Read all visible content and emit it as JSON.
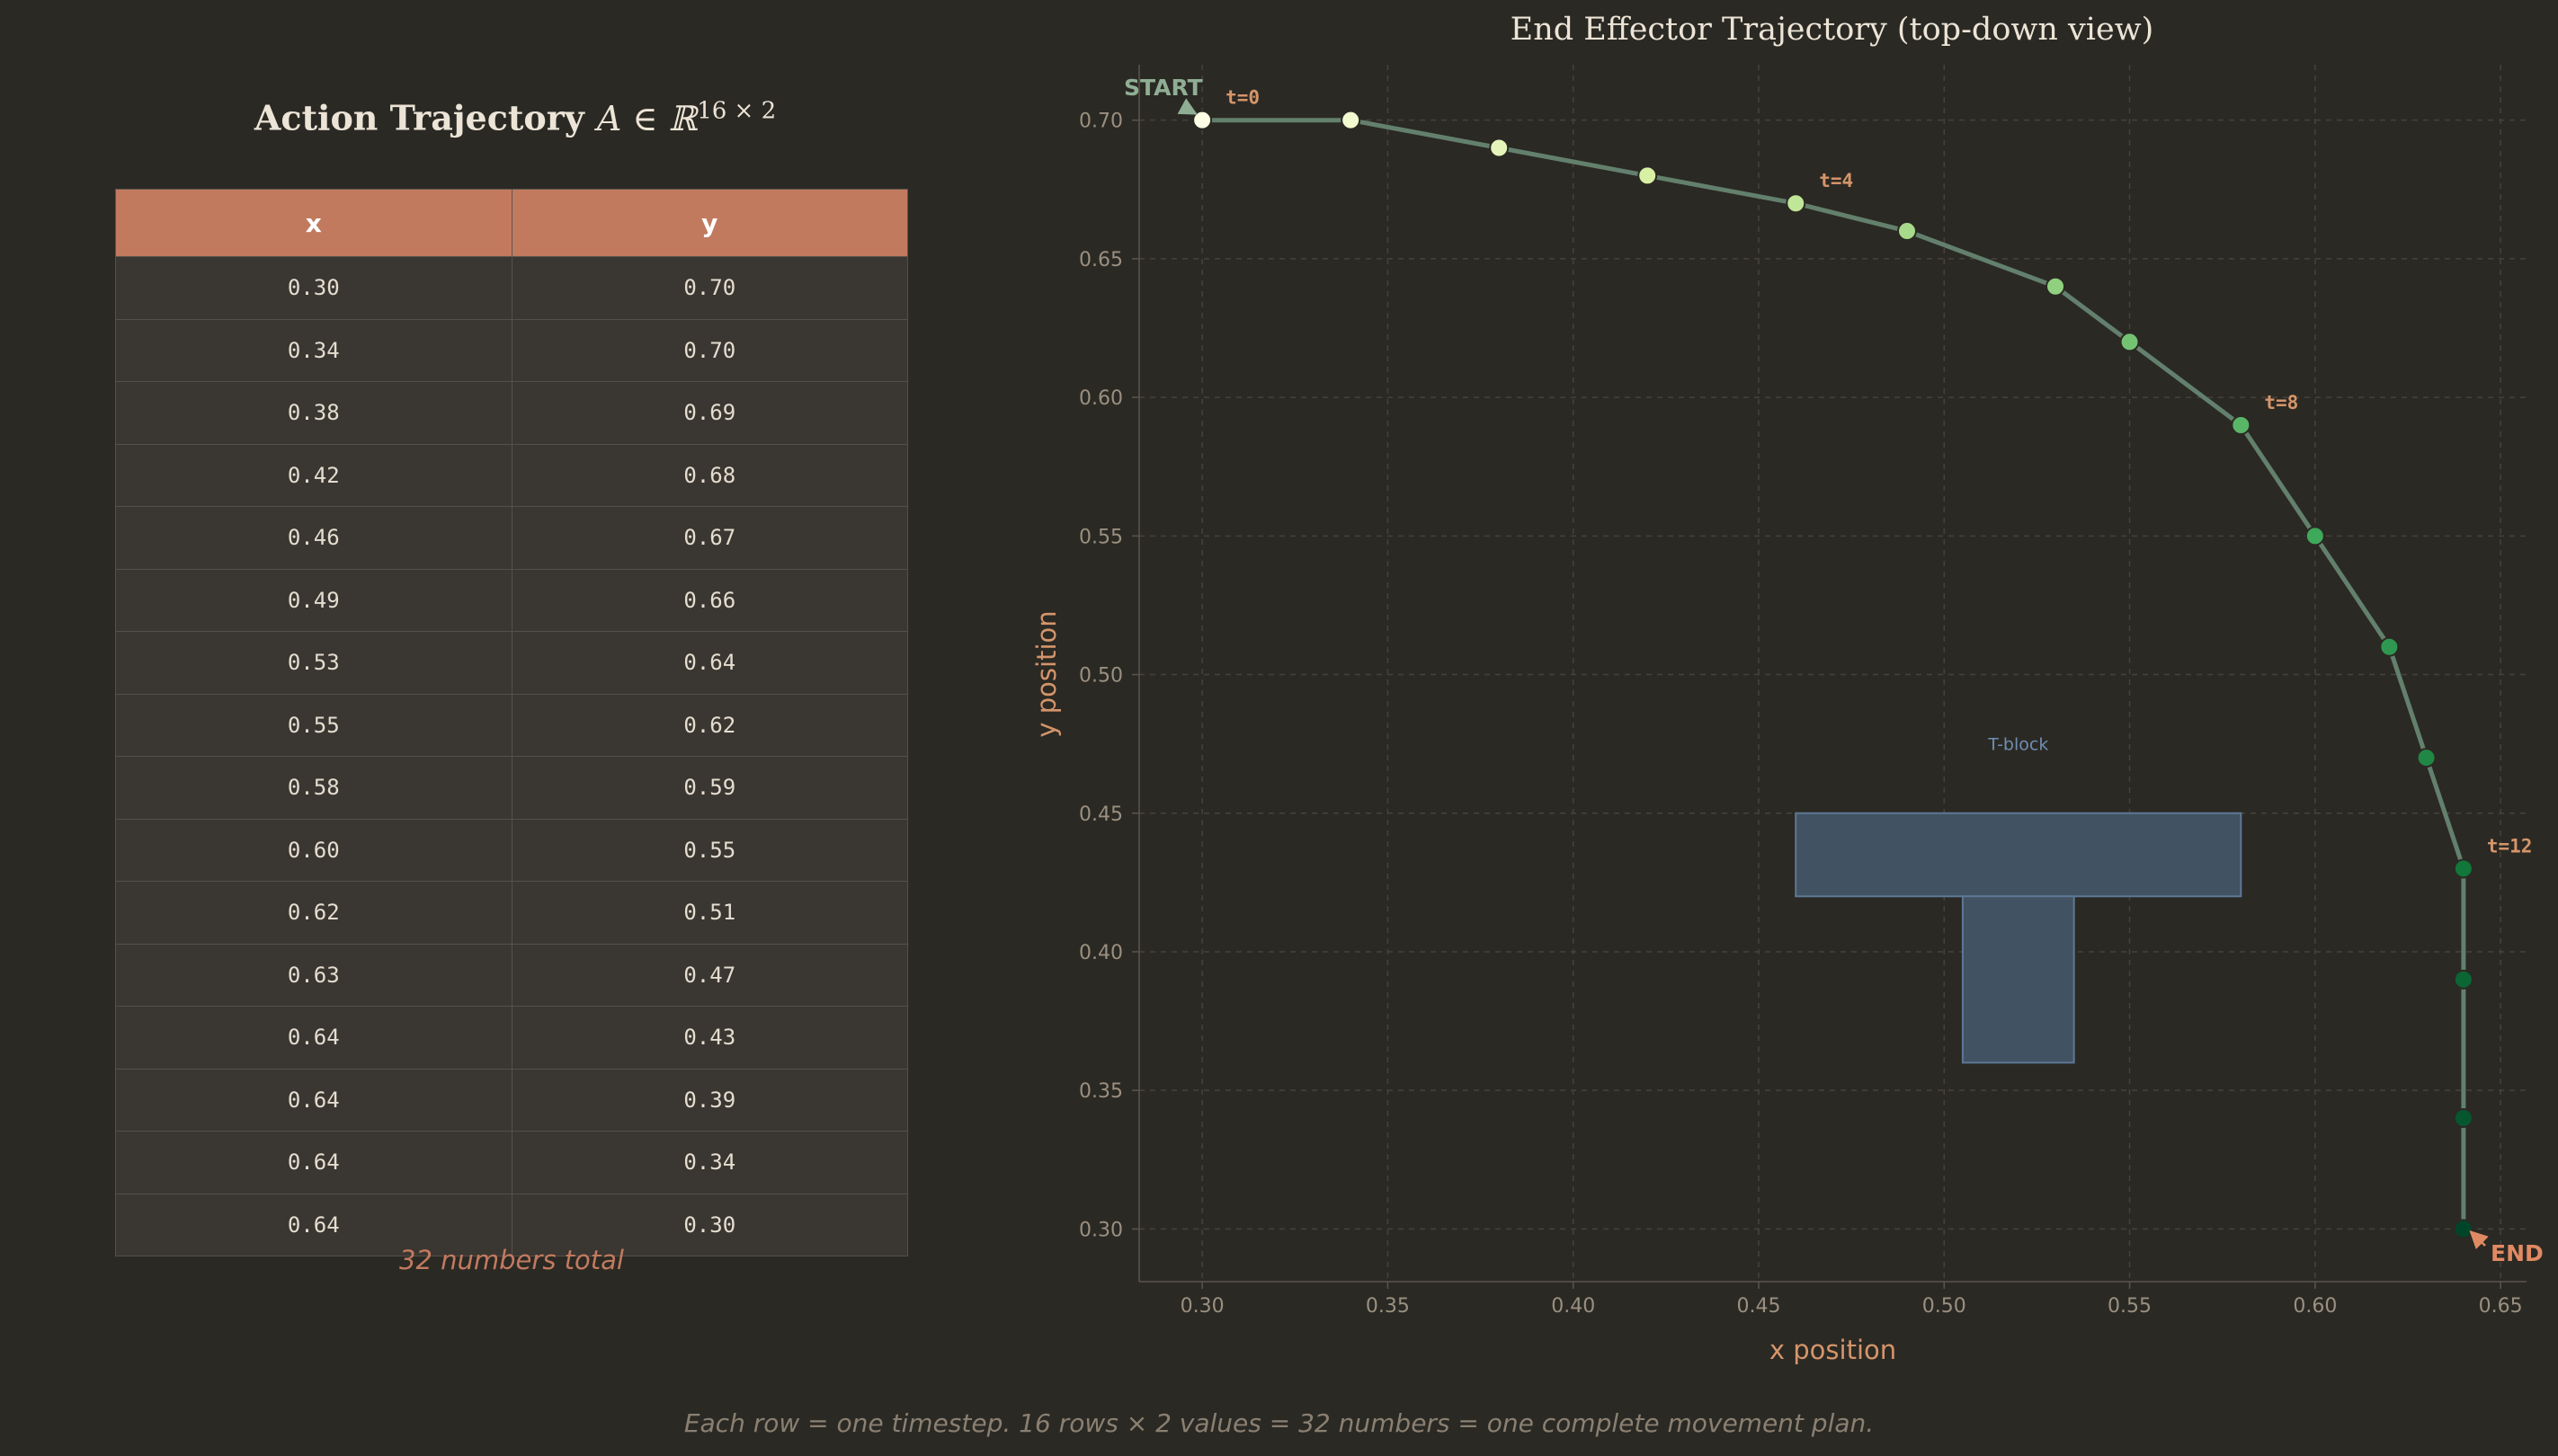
{
  "table_title": {
    "text": "Action Trajectory",
    "math": "A ∈ ℝ",
    "exp": "16 × 2"
  },
  "table": {
    "headers": [
      "x",
      "y"
    ],
    "rows": [
      [
        "0.30",
        "0.70"
      ],
      [
        "0.34",
        "0.70"
      ],
      [
        "0.38",
        "0.69"
      ],
      [
        "0.42",
        "0.68"
      ],
      [
        "0.46",
        "0.67"
      ],
      [
        "0.49",
        "0.66"
      ],
      [
        "0.53",
        "0.64"
      ],
      [
        "0.55",
        "0.62"
      ],
      [
        "0.58",
        "0.59"
      ],
      [
        "0.60",
        "0.55"
      ],
      [
        "0.62",
        "0.51"
      ],
      [
        "0.63",
        "0.47"
      ],
      [
        "0.64",
        "0.43"
      ],
      [
        "0.64",
        "0.39"
      ],
      [
        "0.64",
        "0.34"
      ],
      [
        "0.64",
        "0.30"
      ]
    ]
  },
  "total_note": "32 numbers total",
  "footer_caption": "Each row = one timestep.  16 rows × 2 values = 32 numbers = one complete movement plan.",
  "chart_data": {
    "type": "line",
    "title": "End Effector Trajectory (top-down view)",
    "xlabel": "x position",
    "ylabel": "y position",
    "xlim": [
      0.283,
      0.657
    ],
    "ylim": [
      0.281,
      0.72
    ],
    "xticks": [
      0.3,
      0.35,
      0.4,
      0.45,
      0.5,
      0.55,
      0.6,
      0.65
    ],
    "yticks": [
      0.3,
      0.35,
      0.4,
      0.45,
      0.5,
      0.55,
      0.6,
      0.65,
      0.7
    ],
    "grid": true,
    "series": [
      {
        "name": "trajectory",
        "x": [
          0.3,
          0.34,
          0.38,
          0.42,
          0.46,
          0.49,
          0.53,
          0.55,
          0.58,
          0.6,
          0.62,
          0.63,
          0.64,
          0.64,
          0.64,
          0.64
        ],
        "y": [
          0.7,
          0.7,
          0.69,
          0.68,
          0.67,
          0.66,
          0.64,
          0.62,
          0.59,
          0.55,
          0.51,
          0.47,
          0.43,
          0.39,
          0.34,
          0.3
        ]
      }
    ],
    "point_labels": [
      {
        "index": 0,
        "text": "t=0"
      },
      {
        "index": 4,
        "text": "t=4"
      },
      {
        "index": 8,
        "text": "t=8"
      },
      {
        "index": 12,
        "text": "t=12"
      }
    ],
    "annotations": {
      "start": "START",
      "end": "END"
    },
    "obstacle": {
      "label": "T-block",
      "top_bar": {
        "x": [
          0.46,
          0.58
        ],
        "y": [
          0.42,
          0.45
        ]
      },
      "stem": {
        "x": [
          0.505,
          0.535
        ],
        "y": [
          0.36,
          0.42
        ]
      }
    },
    "colors": {
      "line": "#63806d",
      "axis_label": "#d4956a",
      "tick": "#9a9080",
      "title": "#ece4d6",
      "point_label": "#d4956a",
      "start": "#8fae94",
      "end": "#e08a63",
      "block_fill": "#415262",
      "block_edge": "#5d7896",
      "block_label": "#6f8eb3",
      "gradient": [
        "#ffffe5",
        "#d8f0a3",
        "#8fd17f",
        "#3ea85b",
        "#11773a",
        "#004529"
      ]
    }
  }
}
